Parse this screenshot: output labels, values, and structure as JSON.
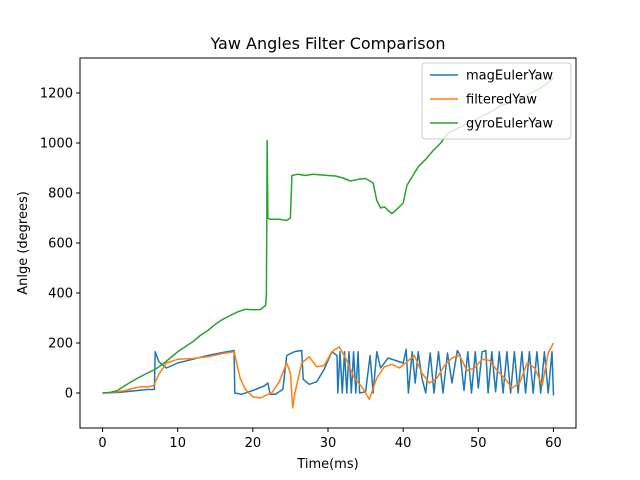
{
  "chart_data": {
    "type": "line",
    "title": "Yaw Angles Filter Comparison",
    "xlabel": "Time(ms)",
    "ylabel": "Anlge (degrees)",
    "xlim": [
      -3,
      63
    ],
    "ylim": [
      -140,
      1340
    ],
    "xticks": [
      0,
      10,
      20,
      30,
      40,
      50,
      60
    ],
    "yticks": [
      0,
      200,
      400,
      600,
      800,
      1000,
      1200
    ],
    "xtick_labels": [
      "0",
      "10",
      "20",
      "30",
      "40",
      "50",
      "60"
    ],
    "ytick_labels": [
      "0",
      "200",
      "400",
      "600",
      "800",
      "1000",
      "1200"
    ],
    "grid": false,
    "legend_position": "top-right",
    "series": [
      {
        "name": "magEulerYaw",
        "color": "#1f77b4",
        "points": [
          [
            0,
            0
          ],
          [
            2,
            2
          ],
          [
            4,
            8
          ],
          [
            6,
            14
          ],
          [
            6.9,
            14
          ],
          [
            7.0,
            165
          ],
          [
            7.5,
            125
          ],
          [
            8.5,
            100
          ],
          [
            10,
            120
          ],
          [
            12,
            135
          ],
          [
            14,
            150
          ],
          [
            16,
            162
          ],
          [
            17.5,
            170
          ],
          [
            17.6,
            0
          ],
          [
            18.5,
            -5
          ],
          [
            20,
            10
          ],
          [
            21.5,
            28
          ],
          [
            22,
            40
          ],
          [
            22.3,
            -5
          ],
          [
            23,
            -5
          ],
          [
            24,
            15
          ],
          [
            24.5,
            150
          ],
          [
            25.5,
            165
          ],
          [
            26.5,
            170
          ],
          [
            26.7,
            55
          ],
          [
            27.5,
            35
          ],
          [
            28.5,
            45
          ],
          [
            29.5,
            95
          ],
          [
            30.5,
            165
          ],
          [
            31.2,
            150
          ],
          [
            31.3,
            0
          ],
          [
            31.6,
            165
          ],
          [
            31.9,
            0
          ],
          [
            32.2,
            165
          ],
          [
            32.5,
            0
          ],
          [
            32.8,
            165
          ],
          [
            33.1,
            0
          ],
          [
            33.4,
            165
          ],
          [
            33.7,
            0
          ],
          [
            34.0,
            165
          ],
          [
            34.2,
            0
          ],
          [
            35,
            5
          ],
          [
            35.6,
            150
          ],
          [
            36.0,
            0
          ],
          [
            36.5,
            165
          ],
          [
            37.0,
            100
          ],
          [
            38,
            140
          ],
          [
            39,
            130
          ],
          [
            40,
            120
          ],
          [
            40.4,
            175
          ],
          [
            40.7,
            0
          ],
          [
            41.2,
            165
          ],
          [
            41.6,
            40
          ],
          [
            42.0,
            165
          ],
          [
            42.5,
            60
          ],
          [
            43.0,
            0
          ],
          [
            43.6,
            160
          ],
          [
            44.1,
            0
          ],
          [
            44.7,
            165
          ],
          [
            45.3,
            0
          ],
          [
            45.9,
            160
          ],
          [
            46.5,
            40
          ],
          [
            47.2,
            170
          ],
          [
            47.6,
            150
          ],
          [
            48.1,
            10
          ],
          [
            48.6,
            165
          ],
          [
            49.1,
            0
          ],
          [
            49.6,
            165
          ],
          [
            50.0,
            20
          ],
          [
            50.5,
            165
          ],
          [
            51.0,
            170
          ],
          [
            51.3,
            0
          ],
          [
            51.8,
            165
          ],
          [
            52.3,
            5
          ],
          [
            52.8,
            165
          ],
          [
            53.3,
            0
          ],
          [
            53.8,
            165
          ],
          [
            54.3,
            0
          ],
          [
            54.8,
            165
          ],
          [
            55.3,
            0
          ],
          [
            55.8,
            165
          ],
          [
            56.3,
            0
          ],
          [
            56.8,
            165
          ],
          [
            57.3,
            0
          ],
          [
            57.8,
            165
          ],
          [
            58.3,
            0
          ],
          [
            58.8,
            165
          ],
          [
            59.3,
            0
          ],
          [
            59.8,
            165
          ],
          [
            60.0,
            -10
          ]
        ]
      },
      {
        "name": "filteredYaw",
        "color": "#ff7f0e",
        "points": [
          [
            0,
            0
          ],
          [
            2,
            5
          ],
          [
            3,
            10
          ],
          [
            4,
            18
          ],
          [
            5,
            25
          ],
          [
            6,
            24
          ],
          [
            6.8,
            30
          ],
          [
            7.5,
            75
          ],
          [
            8.5,
            120
          ],
          [
            10,
            135
          ],
          [
            12,
            138
          ],
          [
            14,
            145
          ],
          [
            16,
            158
          ],
          [
            17.5,
            165
          ],
          [
            18.3,
            60
          ],
          [
            19,
            15
          ],
          [
            20,
            -15
          ],
          [
            21,
            -20
          ],
          [
            22,
            -5
          ],
          [
            22.5,
            0
          ],
          [
            23.5,
            45
          ],
          [
            24.5,
            120
          ],
          [
            25,
            80
          ],
          [
            25.3,
            -60
          ],
          [
            25.6,
            0
          ],
          [
            26.5,
            120
          ],
          [
            27.5,
            145
          ],
          [
            28.5,
            105
          ],
          [
            29.5,
            110
          ],
          [
            30.5,
            165
          ],
          [
            31.5,
            185
          ],
          [
            32.5,
            130
          ],
          [
            33.5,
            60
          ],
          [
            34.5,
            25
          ],
          [
            35.5,
            -25
          ],
          [
            36.5,
            60
          ],
          [
            37.5,
            105
          ],
          [
            38.5,
            115
          ],
          [
            39.5,
            100
          ],
          [
            40.5,
            125
          ],
          [
            41.5,
            150
          ],
          [
            42.5,
            80
          ],
          [
            43.5,
            40
          ],
          [
            44.5,
            60
          ],
          [
            45.5,
            110
          ],
          [
            46.5,
            140
          ],
          [
            47.5,
            150
          ],
          [
            48.5,
            90
          ],
          [
            49.5,
            100
          ],
          [
            50.5,
            135
          ],
          [
            51.5,
            130
          ],
          [
            52.5,
            90
          ],
          [
            53.5,
            60
          ],
          [
            54.5,
            20
          ],
          [
            55.5,
            40
          ],
          [
            56.5,
            120
          ],
          [
            57.5,
            100
          ],
          [
            58.5,
            30
          ],
          [
            59.3,
            160
          ],
          [
            60,
            200
          ]
        ]
      },
      {
        "name": "gyroEulerYaw",
        "color": "#2ca02c",
        "points": [
          [
            0,
            0
          ],
          [
            1,
            2
          ],
          [
            2,
            10
          ],
          [
            3,
            30
          ],
          [
            4,
            48
          ],
          [
            5,
            65
          ],
          [
            6,
            80
          ],
          [
            7,
            95
          ],
          [
            8,
            115
          ],
          [
            9,
            140
          ],
          [
            10,
            165
          ],
          [
            11,
            185
          ],
          [
            12,
            205
          ],
          [
            13,
            230
          ],
          [
            14,
            250
          ],
          [
            15,
            275
          ],
          [
            16,
            295
          ],
          [
            17,
            310
          ],
          [
            18,
            325
          ],
          [
            19,
            335
          ],
          [
            20,
            333
          ],
          [
            21,
            334
          ],
          [
            21.7,
            350
          ],
          [
            21.8,
            400
          ],
          [
            21.85,
            690
          ],
          [
            21.9,
            1010
          ],
          [
            22.0,
            700
          ],
          [
            22.3,
            695
          ],
          [
            23.5,
            695
          ],
          [
            24.5,
            690
          ],
          [
            25,
            700
          ],
          [
            25.2,
            870
          ],
          [
            26,
            875
          ],
          [
            27,
            870
          ],
          [
            28,
            875
          ],
          [
            30,
            870
          ],
          [
            31,
            868
          ],
          [
            32,
            860
          ],
          [
            33,
            848
          ],
          [
            34,
            855
          ],
          [
            35,
            858
          ],
          [
            36,
            840
          ],
          [
            36.5,
            770
          ],
          [
            37,
            740
          ],
          [
            37.5,
            745
          ],
          [
            38,
            730
          ],
          [
            38.5,
            718
          ],
          [
            39,
            730
          ],
          [
            40,
            760
          ],
          [
            40.5,
            830
          ],
          [
            41.5,
            880
          ],
          [
            42,
            905
          ],
          [
            43,
            935
          ],
          [
            44,
            970
          ],
          [
            45,
            1000
          ],
          [
            46,
            1040
          ],
          [
            47,
            1055
          ],
          [
            48,
            1070
          ],
          [
            49,
            1080
          ],
          [
            50,
            1100
          ],
          [
            51,
            1115
          ],
          [
            52,
            1130
          ],
          [
            53,
            1150
          ],
          [
            54,
            1160
          ],
          [
            55,
            1170
          ],
          [
            56,
            1185
          ],
          [
            57,
            1200
          ],
          [
            58,
            1215
          ],
          [
            59,
            1235
          ],
          [
            60,
            1260
          ]
        ]
      }
    ]
  }
}
